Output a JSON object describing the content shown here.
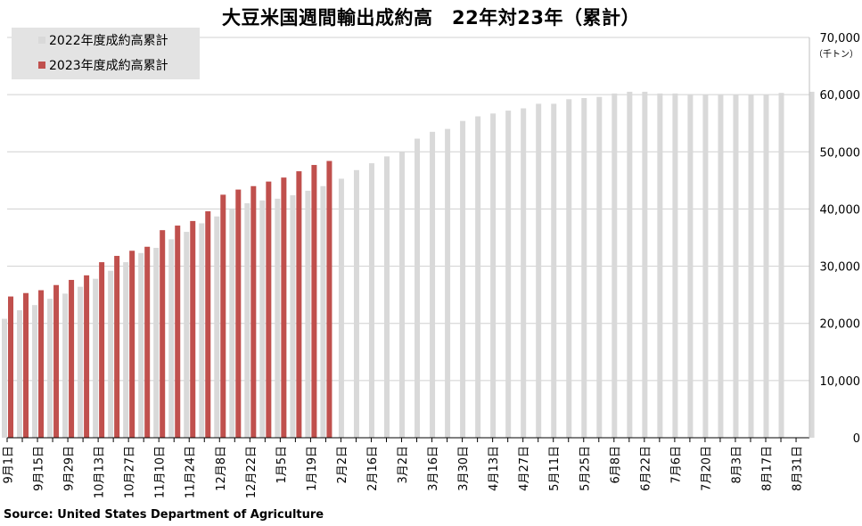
{
  "chart_data": {
    "type": "bar",
    "title": "大豆米国週間輸出成約高　22年対23年（累計）",
    "unit": "（千トン）",
    "source": "Source: United States Department of Agriculture",
    "ylim": [
      0,
      70000
    ],
    "yticks": [
      "0",
      "10,000",
      "20,000",
      "30,000",
      "40,000",
      "50,000",
      "60,000",
      "70,000"
    ],
    "grid": true,
    "legend_position": "top-left",
    "colors": {
      "2022": "#d9d9d9",
      "2023": "#c0504d"
    },
    "x_tick_labels": [
      "9月1日",
      "9月15日",
      "9月29日",
      "10月13日",
      "10月27日",
      "11月10日",
      "11月24日",
      "12月8日",
      "12月22日",
      "1月5日",
      "1月19日",
      "2月2日",
      "2月16日",
      "3月2日",
      "3月16日",
      "3月30日",
      "4月13日",
      "4月27日",
      "5月11日",
      "5月25日",
      "6月8日",
      "6月22日",
      "7月6日",
      "7月20日",
      "8月3日",
      "8月17日",
      "8月31日"
    ],
    "series": [
      {
        "name": "2022年度成約高累計",
        "values": [
          20800,
          22300,
          23200,
          24300,
          25200,
          26400,
          27800,
          29200,
          30700,
          32300,
          33200,
          34700,
          36000,
          37500,
          38700,
          40000,
          41000,
          41500,
          41800,
          42400,
          43200,
          44000,
          45300,
          46800,
          48000,
          49200,
          50000,
          52300,
          53500,
          54000,
          55400,
          56200,
          56700,
          57200,
          57600,
          58400,
          58400,
          59200,
          59400,
          59600,
          60200,
          60500,
          60500,
          60200,
          60200,
          60100,
          60000,
          60100,
          60000,
          60000,
          60000,
          60300,
          null,
          60500
        ]
      },
      {
        "name": "2023年度成約高累計",
        "values": [
          24700,
          25300,
          25800,
          26700,
          27600,
          28400,
          30700,
          31800,
          32700,
          33400,
          36300,
          37100,
          37900,
          39600,
          42500,
          43400,
          44000,
          44800,
          45500,
          46600,
          47700,
          48400
        ]
      }
    ]
  }
}
